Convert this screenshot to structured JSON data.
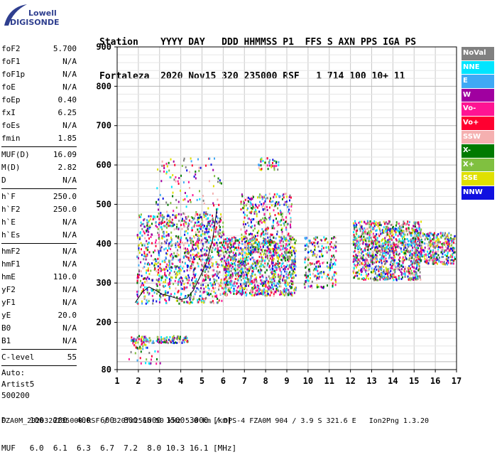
{
  "logo": {
    "top": "Lowell",
    "bottom": "DIGISONDE"
  },
  "header": {
    "row1": "Station    YYYY DAY   DDD HHMMSS P1  FFS S AXN PPS IGA PS",
    "row2": "Fortaleza  2020 Nov15 320 235000 RSF   1 714 100 10+ 11"
  },
  "params": {
    "g1": [
      [
        "foF2",
        "5.700"
      ],
      [
        "foF1",
        "N/A"
      ],
      [
        "foF1p",
        "N/A"
      ],
      [
        "foE",
        "N/A"
      ],
      [
        "foEp",
        "0.40"
      ],
      [
        "fxI",
        "6.25"
      ],
      [
        "foEs",
        "N/A"
      ],
      [
        "fmin",
        "1.85"
      ]
    ],
    "g2": [
      [
        "MUF(D)",
        "16.09"
      ],
      [
        "M(D)",
        "2.82"
      ],
      [
        "D",
        "N/A"
      ]
    ],
    "g3": [
      [
        "h`F",
        "250.0"
      ],
      [
        "h`F2",
        "250.0"
      ],
      [
        "h`E",
        "N/A"
      ],
      [
        "h`Es",
        "N/A"
      ]
    ],
    "g4": [
      [
        "hmF2",
        "N/A"
      ],
      [
        "hmF1",
        "N/A"
      ],
      [
        "hmE",
        "110.0"
      ],
      [
        "yF2",
        "N/A"
      ],
      [
        "yF1",
        "N/A"
      ],
      [
        "yE",
        "20.0"
      ],
      [
        "B0",
        "N/A"
      ],
      [
        "B1",
        "N/A"
      ]
    ],
    "g5": [
      [
        "C-level",
        "55"
      ]
    ],
    "g6": [
      "Auto:",
      "Artist5",
      "500200"
    ]
  },
  "legend": [
    {
      "label": "NoVal",
      "color": "#808080"
    },
    {
      "label": "NNE",
      "color": "#00e5ff"
    },
    {
      "label": "E",
      "color": "#3fa9f5"
    },
    {
      "label": "W",
      "color": "#a000a0"
    },
    {
      "label": "Vo-",
      "color": "#ff1493"
    },
    {
      "label": "Vo+",
      "color": "#ff0030"
    },
    {
      "label": "SSW",
      "color": "#f5b0b0"
    },
    {
      "label": "X-",
      "color": "#007a00"
    },
    {
      "label": "X+",
      "color": "#80c040"
    },
    {
      "label": "SSE",
      "color": "#e0e000"
    },
    {
      "label": "NNW",
      "color": "#1010e0"
    }
  ],
  "footer": {
    "d_row": "D     100  200  400  600  800 1000 1500 3000 [km]",
    "muf_row": "MUF   6.0  6.1  6.3  6.7  7.2  8.0 10.3 16.1 [MHz]",
    "file": "FZA0M_2020320235000.RSF / 320fx256h 50 kHz 5.0 km / DPS-4 FZA0M 904 / 3.9 S 321.6 E   Ion2Png 1.3.20"
  },
  "chart_data": {
    "type": "scatter",
    "title": "",
    "xlabel": "",
    "ylabel": "",
    "xlim": [
      1,
      17
    ],
    "ylim": [
      80,
      900
    ],
    "x_ticks": [
      1,
      2,
      3,
      4,
      5,
      6,
      7,
      8,
      9,
      10,
      11,
      12,
      13,
      14,
      15,
      16,
      17
    ],
    "y_ticks": [
      80,
      200,
      300,
      400,
      500,
      600,
      700,
      800,
      900
    ],
    "grid": true,
    "trace": {
      "name": "",
      "x": [
        1.85,
        2.0,
        2.2,
        2.5,
        2.8,
        3.1,
        3.4,
        3.7,
        4.0,
        4.3,
        4.6,
        4.9,
        5.2,
        5.5,
        5.7
      ],
      "y": [
        250,
        262,
        278,
        290,
        282,
        272,
        268,
        263,
        258,
        262,
        282,
        315,
        350,
        410,
        485
      ]
    },
    "clusters": [
      {
        "x": [
          1.9,
          6.0
        ],
        "y": [
          250,
          480
        ],
        "density": 950
      },
      {
        "x": [
          2.8,
          5.9
        ],
        "y": [
          280,
          620
        ],
        "density": 300
      },
      {
        "x": [
          6.0,
          9.4
        ],
        "y": [
          270,
          420
        ],
        "density": 1100
      },
      {
        "x": [
          6.8,
          9.2
        ],
        "y": [
          380,
          530
        ],
        "density": 350
      },
      {
        "x": [
          7.6,
          8.6
        ],
        "y": [
          590,
          620
        ],
        "density": 40
      },
      {
        "x": [
          9.8,
          11.3
        ],
        "y": [
          290,
          420
        ],
        "density": 220
      },
      {
        "x": [
          12.1,
          15.3
        ],
        "y": [
          310,
          460
        ],
        "density": 1100
      },
      {
        "x": [
          15.0,
          16.9
        ],
        "y": [
          350,
          430
        ],
        "density": 380
      },
      {
        "x": [
          1.6,
          4.3
        ],
        "y": [
          150,
          168
        ],
        "density": 120
      },
      {
        "x": [
          1.7,
          2.4
        ],
        "y": [
          135,
          160
        ],
        "density": 30
      },
      {
        "x": [
          1.5,
          3.0
        ],
        "y": [
          95,
          130
        ],
        "density": 20
      }
    ]
  }
}
